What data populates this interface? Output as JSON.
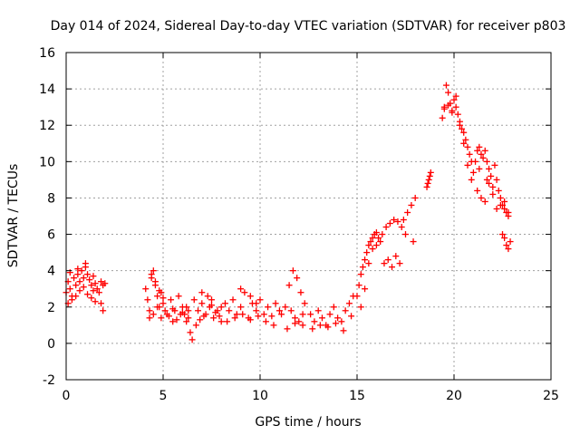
{
  "chart_data": {
    "type": "scatter",
    "title": "Day 014 of 2024, Sidereal Day-to-day VTEC variation (SDTVAR) for receiver p803",
    "xlabel": "GPS time / hours",
    "ylabel": "SDTVAR / TECUs",
    "xlim": [
      0,
      25
    ],
    "ylim": [
      -2,
      16
    ],
    "xticks": [
      0,
      5,
      10,
      15,
      20,
      25
    ],
    "yticks": [
      -2,
      0,
      2,
      4,
      6,
      8,
      10,
      12,
      14,
      16
    ],
    "grid": true,
    "marker": "+",
    "color": "#ff0000",
    "series": [
      {
        "name": "SDTVAR",
        "x": [
          0.0,
          0.1,
          0.2,
          0.3,
          0.4,
          0.5,
          0.6,
          0.7,
          0.8,
          0.9,
          1.0,
          1.1,
          1.2,
          1.3,
          1.4,
          1.5,
          1.6,
          1.7,
          0.1,
          0.3,
          0.5,
          0.7,
          0.9,
          1.1,
          1.3,
          1.5,
          0.2,
          0.6,
          1.0,
          1.4,
          1.8,
          1.9,
          2.0,
          1.8,
          1.9,
          4.1,
          4.2,
          4.3,
          4.4,
          4.5,
          4.6,
          4.7,
          4.8,
          4.9,
          5.0,
          5.2,
          5.4,
          5.6,
          5.8,
          6.0,
          4.3,
          4.5,
          4.7,
          4.9,
          5.1,
          5.3,
          5.5,
          5.7,
          5.9,
          4.4,
          4.6,
          4.8,
          5.0,
          5.5,
          6.0,
          6.2,
          6.3,
          6.4,
          6.5,
          6.3,
          6.2,
          6.1,
          6.6,
          6.8,
          7.0,
          7.2,
          7.4,
          7.6,
          7.8,
          8.0,
          6.7,
          6.9,
          7.1,
          7.3,
          7.5,
          7.7,
          7.9,
          7.0,
          7.5,
          8.0,
          8.2,
          8.4,
          8.6,
          8.8,
          9.0,
          9.2,
          9.4,
          9.6,
          9.8,
          10.0,
          10.2,
          10.4,
          10.6,
          10.8,
          11.0,
          8.3,
          8.7,
          9.1,
          9.5,
          9.9,
          10.3,
          10.7,
          11.1,
          9.0,
          9.5,
          9.8,
          11.3,
          11.5,
          11.7,
          11.9,
          12.1,
          12.3,
          11.6,
          11.8,
          12.0,
          12.2,
          11.4,
          11.8,
          12.2,
          12.6,
          12.8,
          13.0,
          13.2,
          13.4,
          13.6,
          13.8,
          14.0,
          14.2,
          14.4,
          14.6,
          14.8,
          12.7,
          13.1,
          13.5,
          13.9,
          14.3,
          14.7,
          15.0,
          15.1,
          15.2,
          15.3,
          15.4,
          15.5,
          15.6,
          15.7,
          15.8,
          15.9,
          16.0,
          16.1,
          16.2,
          15.2,
          15.4,
          15.6,
          15.8,
          16.0,
          16.3,
          16.5,
          16.7,
          16.9,
          17.1,
          17.3,
          16.4,
          16.8,
          17.2,
          16.6,
          17.0,
          17.4,
          17.6,
          17.8,
          18.0,
          17.5,
          17.9,
          18.6,
          18.7,
          18.8,
          18.65,
          18.75,
          19.4,
          19.5,
          19.6,
          19.7,
          19.8,
          19.9,
          20.0,
          20.1,
          20.2,
          20.3,
          20.4,
          20.5,
          20.6,
          20.7,
          20.8,
          20.9,
          21.0,
          19.5,
          19.7,
          19.9,
          20.1,
          20.3,
          20.5,
          20.7,
          20.9,
          21.1,
          21.2,
          21.3,
          21.4,
          21.5,
          21.6,
          21.7,
          21.8,
          21.9,
          22.0,
          21.2,
          21.4,
          21.6,
          21.8,
          22.0,
          21.3,
          21.7,
          22.1,
          22.2,
          22.3,
          22.4,
          22.5,
          22.6,
          22.7,
          22.8,
          22.2,
          22.4,
          22.6,
          22.8,
          22.5,
          22.6,
          22.7,
          22.8,
          22.9
        ],
        "y": [
          2.8,
          3.4,
          3.0,
          2.6,
          3.6,
          3.2,
          3.8,
          3.4,
          4.0,
          3.6,
          4.2,
          3.8,
          3.5,
          3.2,
          2.9,
          3.3,
          3.0,
          2.8,
          2.2,
          2.4,
          2.6,
          2.9,
          3.1,
          2.7,
          2.5,
          2.3,
          3.9,
          4.1,
          4.4,
          3.7,
          3.4,
          3.2,
          3.3,
          2.2,
          1.8,
          3.0,
          2.4,
          1.8,
          3.6,
          4.0,
          3.2,
          2.6,
          2.0,
          2.8,
          2.2,
          1.6,
          2.4,
          1.8,
          2.6,
          2.0,
          1.4,
          1.6,
          2.0,
          1.4,
          1.8,
          1.5,
          1.9,
          1.3,
          1.6,
          3.8,
          3.4,
          2.9,
          2.5,
          1.2,
          1.7,
          2.0,
          1.4,
          0.6,
          0.2,
          1.8,
          1.2,
          1.6,
          2.4,
          1.8,
          2.2,
          1.6,
          2.0,
          1.4,
          1.8,
          1.2,
          1.0,
          1.3,
          1.5,
          2.6,
          2.1,
          1.7,
          1.5,
          2.8,
          2.4,
          2.0,
          2.2,
          1.8,
          2.4,
          1.6,
          2.0,
          2.8,
          1.4,
          2.2,
          1.8,
          2.4,
          1.6,
          2.0,
          1.5,
          2.2,
          1.8,
          1.2,
          1.4,
          1.6,
          1.3,
          1.5,
          1.2,
          1.0,
          1.6,
          3.0,
          2.6,
          2.2,
          2.0,
          3.2,
          4.0,
          3.6,
          2.8,
          2.2,
          1.8,
          1.4,
          1.2,
          1.6,
          0.8,
          1.1,
          1.0,
          1.6,
          1.2,
          1.8,
          1.4,
          1.0,
          1.6,
          2.0,
          1.4,
          1.2,
          1.8,
          2.2,
          2.6,
          0.8,
          1.0,
          0.9,
          1.1,
          0.7,
          1.5,
          2.6,
          3.2,
          3.8,
          4.2,
          4.6,
          5.0,
          5.4,
          5.6,
          5.8,
          6.0,
          6.1,
          5.8,
          5.6,
          2.0,
          3.0,
          4.4,
          5.2,
          5.4,
          6.0,
          6.4,
          6.6,
          6.8,
          6.7,
          6.4,
          4.4,
          4.2,
          4.4,
          4.6,
          4.8,
          6.8,
          7.2,
          7.6,
          8.0,
          6.0,
          5.6,
          8.6,
          9.0,
          9.4,
          8.8,
          9.2,
          12.4,
          13.0,
          14.2,
          13.8,
          13.2,
          12.8,
          13.4,
          13.0,
          12.6,
          12.2,
          11.8,
          11.6,
          11.2,
          10.8,
          10.4,
          10.0,
          9.4,
          12.9,
          13.1,
          12.7,
          13.6,
          12.0,
          11.0,
          9.8,
          9.0,
          10.0,
          10.6,
          10.8,
          10.4,
          10.2,
          10.6,
          10.0,
          9.6,
          9.2,
          8.6,
          8.4,
          8.0,
          7.8,
          8.8,
          8.2,
          9.6,
          9.0,
          9.8,
          9.0,
          8.4,
          8.0,
          7.6,
          7.8,
          7.2,
          7.0,
          7.4,
          7.6,
          7.4,
          7.2,
          6.0,
          5.8,
          5.4,
          5.2,
          5.6
        ]
      }
    ]
  }
}
